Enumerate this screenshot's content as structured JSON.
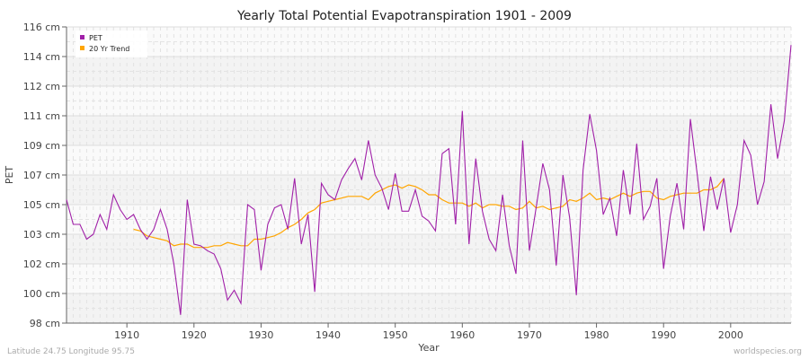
{
  "chart_data": {
    "type": "line",
    "title": "Yearly Total Potential Evapotranspiration 1901 - 2009",
    "xlabel": "Year",
    "ylabel": "PET",
    "xlim": [
      1901,
      2009
    ],
    "ylim": [
      98,
      116
    ],
    "x_ticks": [
      1910,
      1920,
      1930,
      1940,
      1950,
      1960,
      1970,
      1980,
      1990,
      2000
    ],
    "y_ticks": [
      {
        "value": 98,
        "label": "98 cm"
      },
      {
        "value": 99.8,
        "label": "100 cm"
      },
      {
        "value": 101.6,
        "label": "102 cm"
      },
      {
        "value": 103.4,
        "label": "103 cm"
      },
      {
        "value": 105.2,
        "label": "105 cm"
      },
      {
        "value": 107,
        "label": "107 cm"
      },
      {
        "value": 108.8,
        "label": "109 cm"
      },
      {
        "value": 110.6,
        "label": "111 cm"
      },
      {
        "value": 112.4,
        "label": "112 cm"
      },
      {
        "value": 114.2,
        "label": "114 cm"
      },
      {
        "value": 116,
        "label": "116 cm"
      }
    ],
    "legend_position": "top-left",
    "series": [
      {
        "name": "PET",
        "color": "#a020a8",
        "start_year": 1901,
        "values": [
          105.5,
          104.0,
          104.0,
          103.1,
          103.4,
          104.6,
          103.7,
          105.8,
          104.9,
          104.3,
          104.6,
          103.7,
          103.1,
          103.7,
          104.9,
          103.7,
          101.6,
          98.5,
          105.5,
          102.8,
          102.7,
          102.4,
          102.2,
          101.3,
          99.4,
          100.0,
          99.2,
          105.2,
          104.9,
          101.2,
          104.0,
          105.0,
          105.2,
          103.7,
          106.8,
          102.8,
          104.6,
          99.9,
          106.5,
          105.8,
          105.5,
          106.7,
          107.4,
          108.0,
          106.7,
          109.1,
          107.0,
          106.2,
          104.9,
          107.1,
          104.8,
          104.8,
          106.1,
          104.5,
          104.2,
          103.6,
          108.3,
          108.6,
          104.0,
          110.9,
          102.8,
          108.0,
          104.8,
          103.1,
          102.4,
          105.8,
          102.7,
          101.0,
          109.1,
          102.4,
          105.0,
          107.7,
          106.1,
          101.5,
          107.0,
          104.4,
          99.7,
          107.3,
          110.7,
          108.5,
          104.6,
          105.6,
          103.3,
          107.3,
          104.6,
          108.9,
          104.3,
          105.1,
          106.8,
          101.3,
          104.5,
          106.5,
          103.7,
          110.4,
          107.1,
          103.6,
          106.9,
          104.9,
          106.8,
          103.5,
          105.2,
          109.1,
          108.2,
          105.2,
          106.6,
          111.3,
          108.0,
          110.3,
          114.9
        ]
      },
      {
        "name": "20 Yr Trend",
        "color": "#ffa500",
        "start_year": 1911,
        "values": [
          103.7,
          103.6,
          103.3,
          103.2,
          103.1,
          103.0,
          102.7,
          102.8,
          102.8,
          102.6,
          102.6,
          102.6,
          102.7,
          102.7,
          102.9,
          102.8,
          102.7,
          102.7,
          103.1,
          103.1,
          103.2,
          103.3,
          103.5,
          103.8,
          104.0,
          104.3,
          104.7,
          104.9,
          105.3,
          105.4,
          105.5,
          105.6,
          105.7,
          105.7,
          105.7,
          105.5,
          105.9,
          106.1,
          106.3,
          106.4,
          106.2,
          106.4,
          106.3,
          106.1,
          105.8,
          105.8,
          105.5,
          105.3,
          105.3,
          105.3,
          105.1,
          105.3,
          105.0,
          105.2,
          105.2,
          105.1,
          105.1,
          104.9,
          105.0,
          105.4,
          105.0,
          105.1,
          104.9,
          105.0,
          105.1,
          105.5,
          105.4,
          105.6,
          105.9,
          105.5,
          105.6,
          105.5,
          105.7,
          105.9,
          105.7,
          105.9,
          106.0,
          106.0,
          105.6,
          105.5,
          105.7,
          105.8,
          105.9,
          105.9,
          105.9,
          106.1,
          106.1,
          106.3,
          106.8
        ]
      }
    ]
  },
  "footer": {
    "location": "Latitude 24.75 Longitude 95.75",
    "credit": "worldspecies.org"
  }
}
